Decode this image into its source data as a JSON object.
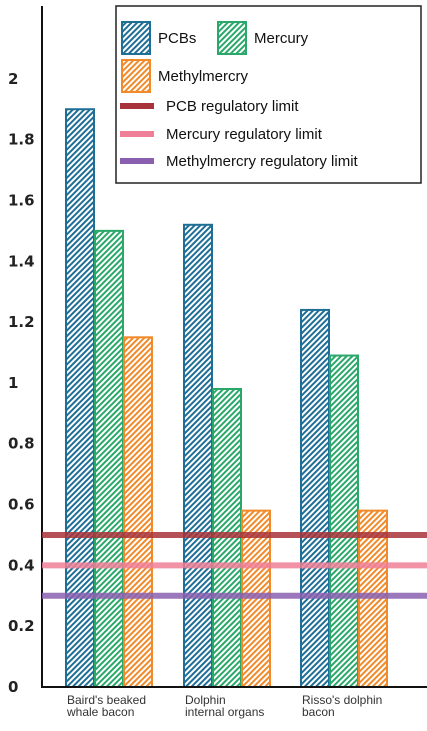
{
  "chart_data": {
    "type": "bar",
    "title": "",
    "xlabel": "",
    "ylabel": "",
    "ylim": [
      0,
      2.2
    ],
    "yticks": [
      "0",
      "0.2",
      "0.4",
      "0.6",
      "0.8",
      "1",
      "1.2",
      "1.4",
      "1.6",
      "1.8",
      "2"
    ],
    "categories": [
      [
        "Baird's  beaked",
        "whale bacon"
      ],
      [
        "Dolphin",
        "internal organs"
      ],
      [
        "Risso's dolphin",
        "bacon"
      ]
    ],
    "series": [
      {
        "name": "PCBs",
        "color": "#1f6e96",
        "values": [
          1.9,
          1.52,
          1.24
        ]
      },
      {
        "name": "Mercury",
        "color": "#2aa86a",
        "values": [
          1.5,
          0.98,
          1.09
        ]
      },
      {
        "name": "Methylmercry",
        "color": "#f08a2a",
        "values": [
          1.15,
          0.58,
          0.58
        ]
      }
    ],
    "reference_lines": [
      {
        "name": "PCB regulatory limit",
        "value": 0.5,
        "color": "#a8323a"
      },
      {
        "name": "Mercury regulatory limit",
        "value": 0.4,
        "color": "#ef7f97"
      },
      {
        "name": "Methylmercry regulatory limit",
        "value": 0.3,
        "color": "#8a5fb0"
      }
    ],
    "grid": false,
    "legend_position": "top-right",
    "bar_pattern": "hatched"
  }
}
